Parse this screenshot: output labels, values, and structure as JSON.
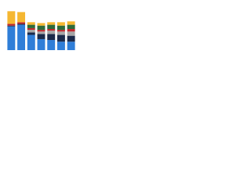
{
  "chart_data": {
    "type": "stacked-bar",
    "categories": [
      null,
      null,
      null,
      null,
      null,
      null,
      null
    ],
    "ylim": [
      0,
      50
    ],
    "series": [
      {
        "color": "#2f7ed8",
        "values": [
          28,
          30,
          18,
          13,
          12,
          10,
          10
        ]
      },
      {
        "color": "#1b2a4a",
        "values": [
          1,
          1,
          3,
          6,
          7,
          8,
          7
        ]
      },
      {
        "color": "#a6a6a6",
        "values": [
          0,
          0,
          3,
          3,
          4,
          4,
          5
        ]
      },
      {
        "color": "#c0282d",
        "values": [
          2,
          2,
          2,
          2,
          2,
          2,
          3
        ]
      },
      {
        "color": "#2e6b3a",
        "values": [
          0,
          0,
          4,
          5,
          5,
          5,
          5
        ]
      },
      {
        "color": "#f5b731",
        "values": [
          15,
          12,
          3,
          3,
          3,
          4,
          4
        ]
      }
    ]
  }
}
